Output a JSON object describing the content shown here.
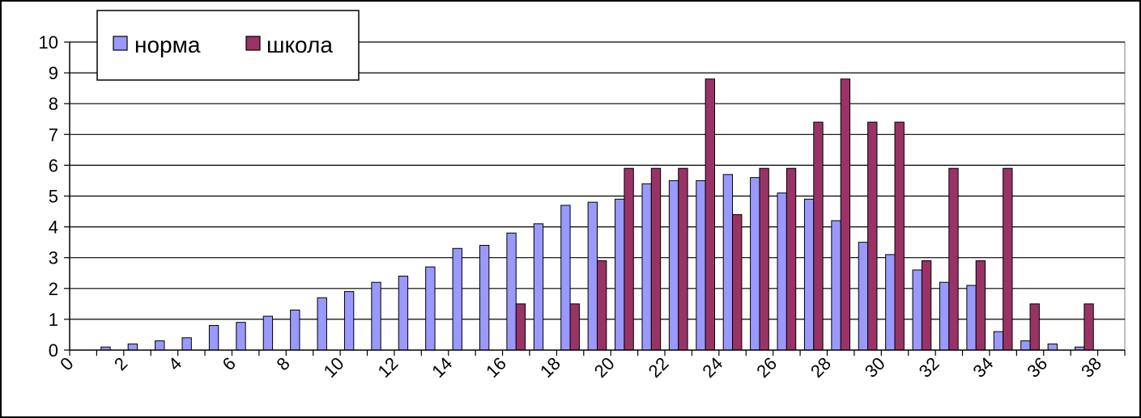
{
  "chart_data": {
    "type": "bar",
    "title": "",
    "xlabel": "",
    "ylabel": "",
    "ylim": [
      0,
      10
    ],
    "yticks": [
      0,
      1,
      2,
      3,
      4,
      5,
      6,
      7,
      8,
      9,
      10
    ],
    "xlim": [
      0,
      39
    ],
    "xticks": [
      0,
      2,
      4,
      6,
      8,
      10,
      12,
      14,
      16,
      18,
      20,
      22,
      24,
      26,
      28,
      30,
      32,
      34,
      36,
      38
    ],
    "x": [
      1,
      2,
      3,
      4,
      5,
      6,
      7,
      8,
      9,
      10,
      11,
      12,
      13,
      14,
      15,
      16,
      17,
      18,
      19,
      20,
      21,
      22,
      23,
      24,
      25,
      26,
      27,
      28,
      29,
      30,
      31,
      32,
      33,
      34,
      35,
      36,
      37
    ],
    "grid": "horizontal",
    "legend_position": "top-left",
    "series": [
      {
        "name": "норма",
        "color": "#9999FF",
        "values": [
          0.1,
          0.2,
          0.3,
          0.4,
          0.8,
          0.9,
          1.1,
          1.3,
          1.7,
          1.9,
          2.2,
          2.4,
          2.7,
          3.3,
          3.4,
          3.8,
          4.1,
          4.7,
          4.8,
          4.9,
          5.4,
          5.5,
          5.5,
          5.7,
          5.6,
          5.1,
          4.9,
          4.2,
          3.5,
          3.1,
          2.6,
          2.2,
          2.1,
          0.6,
          0.3,
          0.2,
          0.1
        ]
      },
      {
        "name": "школа",
        "color": "#993366",
        "values": [
          0,
          0,
          0,
          0,
          0,
          0,
          0,
          0,
          0,
          0,
          0,
          0,
          0,
          0,
          0,
          1.5,
          0,
          1.5,
          2.9,
          5.9,
          5.9,
          5.9,
          8.8,
          4.4,
          5.9,
          5.9,
          7.4,
          8.8,
          7.4,
          7.4,
          2.9,
          5.9,
          2.9,
          5.9,
          1.5,
          0,
          1.5
        ]
      }
    ]
  }
}
